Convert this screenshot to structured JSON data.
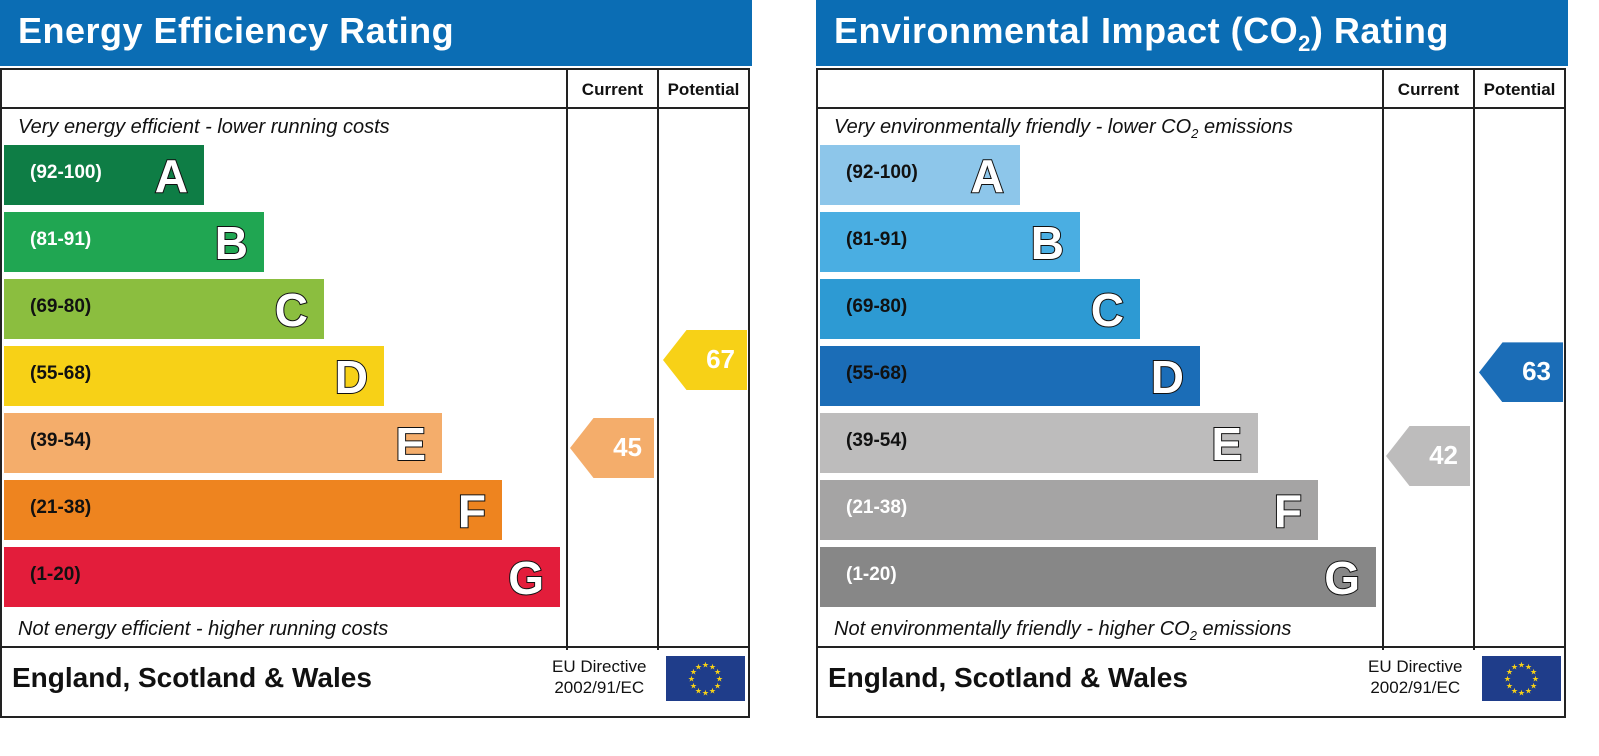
{
  "chart_data": [
    {
      "type": "bar",
      "title": "Energy Efficiency Rating",
      "columns": [
        "Current",
        "Potential"
      ],
      "top_caption": "Very energy efficient - lower running costs",
      "bottom_caption": "Not energy efficient - higher running costs",
      "categories": [
        "A",
        "B",
        "C",
        "D",
        "E",
        "F",
        "G"
      ],
      "ranges": [
        "(92-100)",
        "(81-91)",
        "(69-80)",
        "(55-68)",
        "(39-54)",
        "(21-38)",
        "(1-20)"
      ],
      "colors": [
        "#0e7d45",
        "#20a652",
        "#8bbe3f",
        "#f7d117",
        "#f4ad6b",
        "#ee841f",
        "#e31d3b"
      ],
      "range_text_colors": [
        "#ffffff",
        "#ffffff",
        "#111111",
        "#111111",
        "#111111",
        "#111111",
        "#111111"
      ],
      "current": {
        "value": 45,
        "band": "E",
        "color": "#f4ad6b"
      },
      "potential": {
        "value": 67,
        "band": "D",
        "color": "#f7d117"
      },
      "footer": {
        "region": "England, Scotland & Wales",
        "directive_line1": "EU Directive",
        "directive_line2": "2002/91/EC"
      }
    },
    {
      "type": "bar",
      "title": "Environmental Impact (CO2) Rating",
      "title_main": "Environmental Impact (CO",
      "title_sub": "2",
      "title_end": ") Rating",
      "columns": [
        "Current",
        "Potential"
      ],
      "top_caption": "Very environmentally friendly - lower CO2 emissions",
      "top_caption_main": "Very environmentally friendly - lower CO",
      "top_caption_sub": "2",
      "top_caption_end": " emissions",
      "bottom_caption": "Not environmentally friendly - higher CO2 emissions",
      "bottom_caption_main": "Not environmentally friendly - higher CO",
      "bottom_caption_sub": "2",
      "bottom_caption_end": " emissions",
      "categories": [
        "A",
        "B",
        "C",
        "D",
        "E",
        "F",
        "G"
      ],
      "ranges": [
        "(92-100)",
        "(81-91)",
        "(69-80)",
        "(55-68)",
        "(39-54)",
        "(21-38)",
        "(1-20)"
      ],
      "colors": [
        "#8dc6ea",
        "#4aaee2",
        "#2d9ad3",
        "#1b6db7",
        "#bdbcbc",
        "#a5a4a4",
        "#878787"
      ],
      "range_text_colors": [
        "#111111",
        "#111111",
        "#111111",
        "#111111",
        "#111111",
        "#ffffff",
        "#ffffff"
      ],
      "current": {
        "value": 42,
        "band": "E",
        "color": "#bdbcbc"
      },
      "potential": {
        "value": 63,
        "band": "D",
        "color": "#1b6db7"
      },
      "footer": {
        "region": "England, Scotland & Wales",
        "directive_line1": "EU Directive",
        "directive_line2": "2002/91/EC"
      }
    }
  ]
}
